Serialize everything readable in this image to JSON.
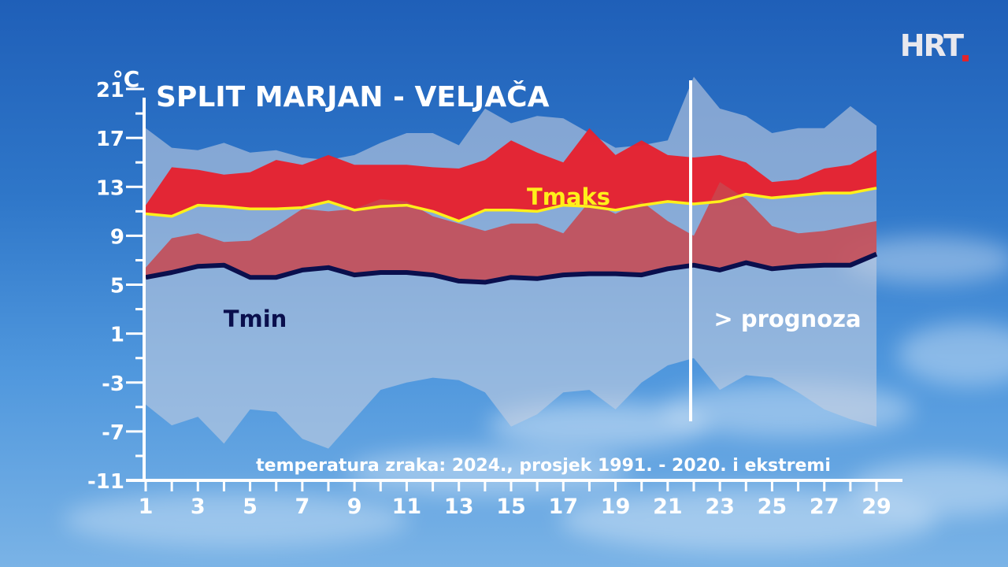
{
  "broadcaster": {
    "logo_text": "HRT"
  },
  "chart_data": {
    "type": "area",
    "title": "SPLIT MARJAN - VELJAČA",
    "subtitle": "temperatura zraka: 2024., prosjek 1991. - 2020. i ekstremi",
    "ylabel": "°C",
    "xlabel": "",
    "ylim": [
      -11,
      23
    ],
    "xlim": [
      1,
      29
    ],
    "x_ticks": [
      1,
      3,
      5,
      7,
      9,
      11,
      13,
      15,
      17,
      19,
      21,
      23,
      25,
      27,
      29
    ],
    "y_ticks": [
      21,
      17,
      13,
      9,
      5,
      1,
      -3,
      -7,
      -11
    ],
    "forecast_marker_day": 22,
    "forecast_label": "> prognoza",
    "days": [
      1,
      2,
      3,
      4,
      5,
      6,
      7,
      8,
      9,
      10,
      11,
      12,
      13,
      14,
      15,
      16,
      17,
      18,
      19,
      20,
      21,
      22,
      23,
      24,
      25,
      26,
      27,
      28,
      29
    ],
    "extreme_max": [
      17.8,
      16.2,
      16.0,
      16.6,
      15.8,
      16.0,
      15.4,
      15.2,
      15.6,
      16.6,
      17.4,
      17.4,
      16.4,
      19.4,
      18.2,
      18.8,
      18.6,
      17.4,
      16.2,
      16.4,
      16.8,
      22.0,
      19.4,
      18.8,
      17.4,
      17.8,
      17.8,
      19.6,
      18.0
    ],
    "extreme_min": [
      -4.8,
      -6.5,
      -5.8,
      -8.0,
      -5.2,
      -5.4,
      -7.6,
      -8.4,
      -6.0,
      -3.6,
      -3.0,
      -2.6,
      -2.8,
      -3.8,
      -6.6,
      -5.6,
      -3.8,
      -3.6,
      -5.2,
      -3.0,
      -1.6,
      -1.0,
      -3.6,
      -2.4,
      -2.6,
      -3.8,
      -5.2,
      -6.0,
      -6.6
    ],
    "series": [
      {
        "name": "Tmaks",
        "values": [
          10.8,
          10.6,
          11.5,
          11.4,
          11.2,
          11.2,
          11.3,
          11.8,
          11.1,
          11.4,
          11.5,
          11.0,
          10.2,
          11.1,
          11.1,
          11.0,
          11.5,
          11.4,
          11.1,
          11.5,
          11.8,
          11.6,
          11.8,
          12.4,
          12.1,
          12.3,
          12.5,
          12.5,
          12.9
        ]
      },
      {
        "name": "Tmin",
        "values": [
          5.6,
          6.0,
          6.5,
          6.6,
          5.6,
          5.6,
          6.2,
          6.4,
          5.8,
          6.0,
          6.0,
          5.8,
          5.3,
          5.2,
          5.6,
          5.5,
          5.8,
          5.9,
          5.9,
          5.8,
          6.3,
          6.6,
          6.2,
          6.8,
          6.3,
          6.5,
          6.6,
          6.6,
          7.5
        ]
      }
    ],
    "tmax_band": {
      "high": [
        11.5,
        14.6,
        14.4,
        14.0,
        14.2,
        15.2,
        14.8,
        15.6,
        14.8,
        14.8,
        14.8,
        14.6,
        14.5,
        15.2,
        16.8,
        15.8,
        15.0,
        17.8,
        15.6,
        16.8,
        15.6,
        15.4,
        15.6,
        15.0,
        13.4,
        13.6,
        14.5,
        14.8,
        16.0
      ],
      "low": [
        10.8,
        10.6,
        11.5,
        11.4,
        11.2,
        11.2,
        11.3,
        11.8,
        11.1,
        11.4,
        11.5,
        11.0,
        10.2,
        11.1,
        11.1,
        11.0,
        11.5,
        11.4,
        11.1,
        11.5,
        11.8,
        11.6,
        11.8,
        12.4,
        12.1,
        12.3,
        12.5,
        12.5,
        12.9
      ]
    },
    "tmin_band": {
      "high": [
        6.4,
        8.8,
        9.2,
        8.5,
        8.6,
        9.8,
        11.2,
        11.0,
        11.2,
        12.0,
        11.8,
        10.6,
        10.0,
        9.4,
        10.0,
        10.0,
        9.2,
        11.8,
        10.8,
        11.8,
        10.2,
        9.0,
        13.4,
        12.0,
        9.8,
        9.2,
        9.4,
        9.8,
        10.2
      ],
      "low": [
        5.6,
        6.0,
        6.5,
        6.6,
        5.6,
        5.6,
        6.2,
        6.4,
        5.8,
        6.0,
        6.0,
        5.8,
        5.3,
        5.2,
        5.6,
        5.5,
        5.8,
        5.9,
        5.9,
        5.8,
        6.3,
        6.6,
        6.2,
        6.8,
        6.3,
        6.5,
        6.6,
        6.6,
        7.5
      ]
    },
    "colors": {
      "extreme_band": "#c7cfe0",
      "tmax_band": "#e8202c",
      "tmin_band": "#c9474f",
      "tmax_line": "#ffef1a",
      "tmin_line": "#0a0f4d",
      "axis": "#ffffff",
      "text": "#ffffff"
    },
    "grid": false
  }
}
